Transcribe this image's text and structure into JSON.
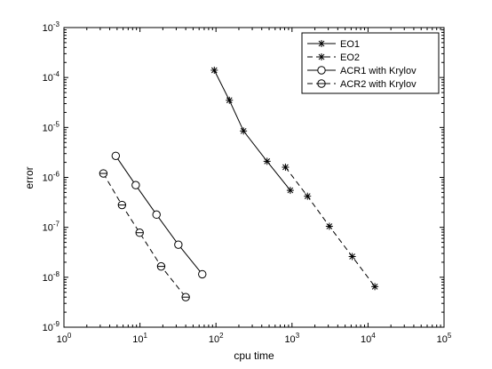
{
  "chart_data": {
    "type": "line",
    "xlabel": "cpu time",
    "ylabel": "error",
    "xscale": "log",
    "yscale": "log",
    "xlim": [
      1,
      100000
    ],
    "ylim": [
      1e-09,
      0.001
    ],
    "grid": false,
    "legend_position": "top-right",
    "x_ticks": [
      {
        "value": 1,
        "base": "10",
        "exp": "0"
      },
      {
        "value": 10,
        "base": "10",
        "exp": "1"
      },
      {
        "value": 100,
        "base": "10",
        "exp": "2"
      },
      {
        "value": 1000,
        "base": "10",
        "exp": "3"
      },
      {
        "value": 10000,
        "base": "10",
        "exp": "4"
      },
      {
        "value": 100000,
        "base": "10",
        "exp": "5"
      }
    ],
    "y_ticks": [
      {
        "value": 1e-09,
        "base": "10",
        "exp": "-9"
      },
      {
        "value": 1e-08,
        "base": "10",
        "exp": "-8"
      },
      {
        "value": 1e-07,
        "base": "10",
        "exp": "-7"
      },
      {
        "value": 1e-06,
        "base": "10",
        "exp": "-6"
      },
      {
        "value": 1e-05,
        "base": "10",
        "exp": "-5"
      },
      {
        "value": 0.0001,
        "base": "10",
        "exp": "-4"
      },
      {
        "value": 0.001,
        "base": "10",
        "exp": "-3"
      }
    ],
    "series": [
      {
        "name": "EO1",
        "line": "solid",
        "marker": "star",
        "color": "#000000",
        "points": [
          [
            95,
            0.00014
          ],
          [
            150,
            3.5e-05
          ],
          [
            230,
            8.5e-06
          ],
          [
            470,
            2.1e-06
          ],
          [
            950,
            5.5e-07
          ]
        ]
      },
      {
        "name": "EO2",
        "line": "dashed",
        "marker": "star",
        "color": "#000000",
        "points": [
          [
            820,
            1.6e-06
          ],
          [
            1600,
            4.2e-07
          ],
          [
            3100,
            1.05e-07
          ],
          [
            6200,
            2.6e-08
          ],
          [
            12300,
            6.5e-09
          ]
        ]
      },
      {
        "name": "ACR1 with Krylov",
        "line": "solid",
        "marker": "circle",
        "color": "#000000",
        "points": [
          [
            4.8,
            2.7e-06
          ],
          [
            8.8,
            7e-07
          ],
          [
            16.5,
            1.8e-07
          ],
          [
            32,
            4.5e-08
          ],
          [
            66,
            1.15e-08
          ]
        ]
      },
      {
        "name": "ACR2 with Krylov",
        "line": "dashed",
        "marker": "circle-dash",
        "color": "#000000",
        "points": [
          [
            3.3,
            1.2e-06
          ],
          [
            5.8,
            2.8e-07
          ],
          [
            9.9,
            7.8e-08
          ],
          [
            19,
            1.65e-08
          ],
          [
            40,
            4e-09
          ]
        ]
      }
    ]
  }
}
